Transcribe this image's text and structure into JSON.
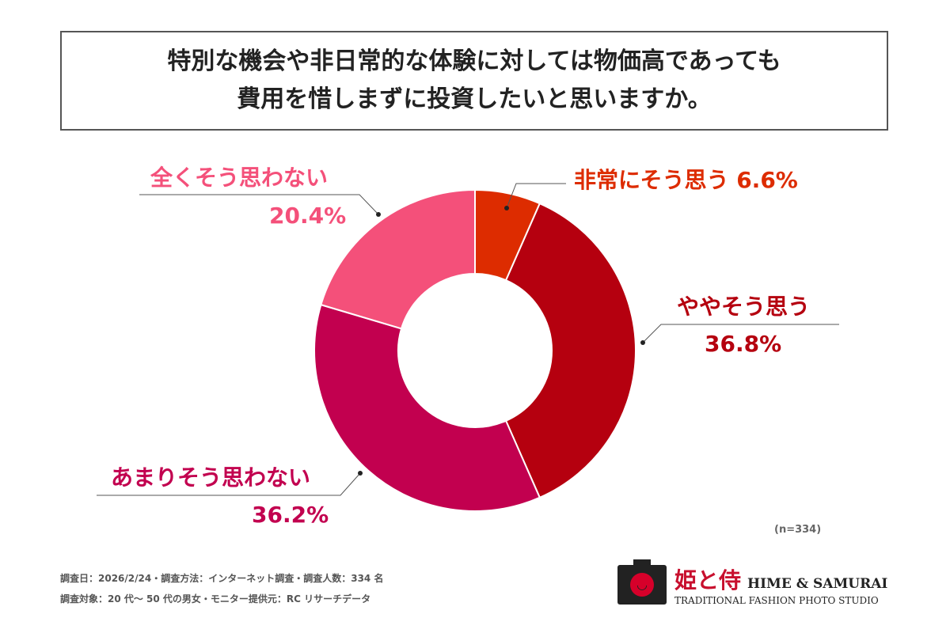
{
  "title": {
    "line1": "特別な機会や非日常的な体験に対しては物価高であっても",
    "line2": "費用を惜しまずに投資したいと思いますか。"
  },
  "chart_data": {
    "type": "pie",
    "donut": true,
    "categories": [
      "非常にそう思う",
      "ややそう思う",
      "あまりそう思わない",
      "全くそう思わない"
    ],
    "values": [
      6.6,
      36.8,
      36.2,
      20.4
    ],
    "labels": [
      "6.6%",
      "36.8%",
      "36.2%",
      "20.4%"
    ],
    "colors": [
      "#DD2C00",
      "#B5000F",
      "#C2004F",
      "#F4507A"
    ],
    "legend": "none"
  },
  "sample": "(n=334)",
  "footer": {
    "line1": "調査日：2026/2/24・調査方法：インターネット調査・調査人数：334 名",
    "line2": "調査対象：20 代～ 50 代の男女・モニター提供元：RC リサーチデータ"
  },
  "logo": {
    "kanji": "姫と侍",
    "name": "HIME & SAMURAI",
    "tagline": "TRADITIONAL FASHION PHOTO STUDIO"
  }
}
